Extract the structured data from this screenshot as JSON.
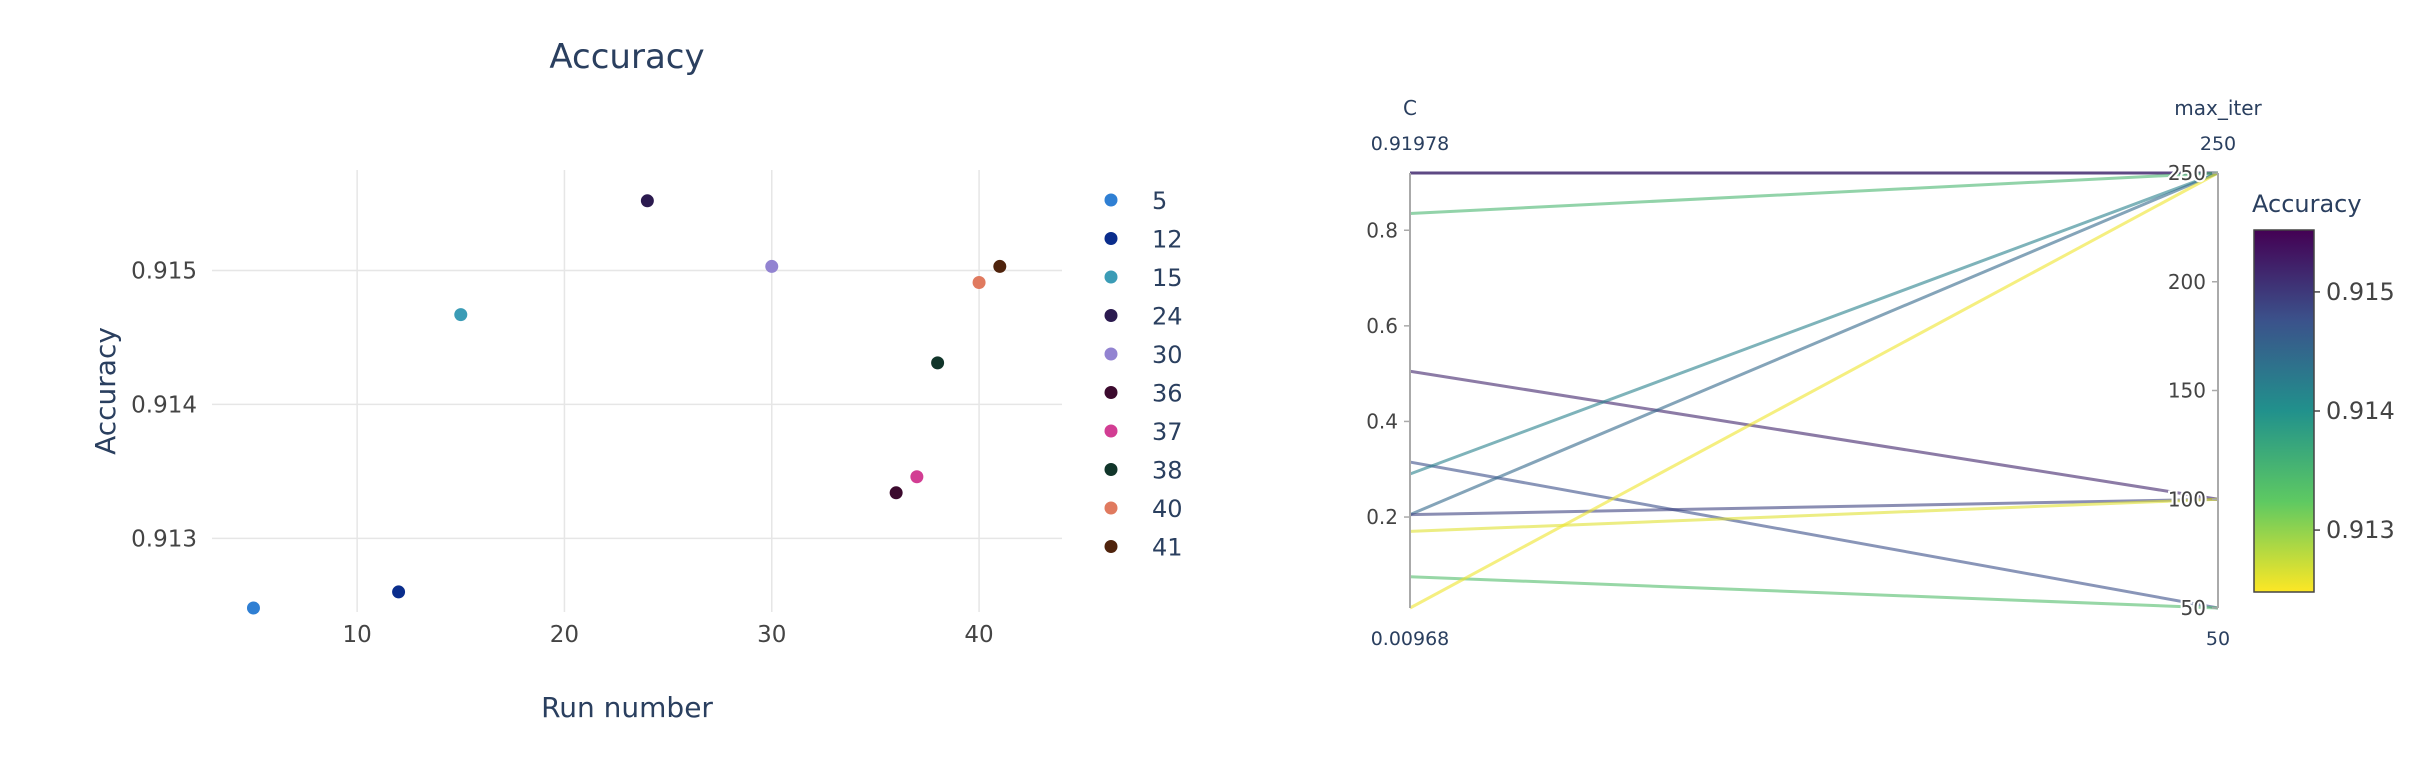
{
  "colors": {
    "grid": "#e6e6e6",
    "axis_text": "#444444",
    "title_text": "#2a3f5f",
    "pc_axis": "#aaaaaa",
    "viridis": [
      "#fde725",
      "#5ec962",
      "#21918c",
      "#3b528b",
      "#440154"
    ]
  },
  "chart_data": [
    {
      "type": "scatter",
      "title": "Accuracy",
      "xlabel": "Run number",
      "ylabel": "Accuracy",
      "xlim": [
        3,
        44
      ],
      "ylim": [
        0.91245,
        0.91575
      ],
      "xticks": [
        10,
        20,
        30,
        40
      ],
      "yticks": [
        0.913,
        0.914,
        0.915
      ],
      "grid": true,
      "legend_position": "right",
      "series": [
        {
          "name": "5",
          "x": [
            5
          ],
          "y": [
            0.91248
          ],
          "color": "#2f7fd3"
        },
        {
          "name": "12",
          "x": [
            12
          ],
          "y": [
            0.9126
          ],
          "color": "#0a2d8c"
        },
        {
          "name": "15",
          "x": [
            15
          ],
          "y": [
            0.91467
          ],
          "color": "#3b9cb6"
        },
        {
          "name": "24",
          "x": [
            24
          ],
          "y": [
            0.91552
          ],
          "color": "#2b1a4f"
        },
        {
          "name": "30",
          "x": [
            30
          ],
          "y": [
            0.91503
          ],
          "color": "#9283d1"
        },
        {
          "name": "36",
          "x": [
            36
          ],
          "y": [
            0.91334
          ],
          "color": "#3c0a2e"
        },
        {
          "name": "37",
          "x": [
            37
          ],
          "y": [
            0.91346
          ],
          "color": "#d23d93"
        },
        {
          "name": "38",
          "x": [
            38
          ],
          "y": [
            0.91431
          ],
          "color": "#11352a"
        },
        {
          "name": "40",
          "x": [
            40
          ],
          "y": [
            0.91491
          ],
          "color": "#e07a5f"
        },
        {
          "name": "41",
          "x": [
            41
          ],
          "y": [
            0.91503
          ],
          "color": "#4f230c"
        }
      ]
    },
    {
      "type": "parallel_coordinates",
      "dimensions": [
        {
          "label": "C",
          "range": [
            0.00968,
            0.91978
          ],
          "range_labels": [
            "0.00968",
            "0.91978"
          ],
          "ticks": [
            0.2,
            0.4,
            0.6,
            0.8
          ]
        },
        {
          "label": "max_iter",
          "range": [
            50,
            250
          ],
          "range_labels": [
            "50",
            "250"
          ],
          "ticks": [
            50,
            100,
            150,
            200,
            250
          ]
        }
      ],
      "colorbar": {
        "title": "Accuracy",
        "range": [
          0.91248,
          0.91552
        ],
        "ticks": [
          0.913,
          0.914,
          0.915
        ],
        "colorscale": "Viridis"
      },
      "lines": [
        {
          "C": 0.91978,
          "max_iter": 250,
          "accuracy": 0.91552
        },
        {
          "C": 0.91978,
          "max_iter": 250,
          "accuracy": 0.91503
        },
        {
          "C": 0.835,
          "max_iter": 250,
          "accuracy": 0.9135
        },
        {
          "C": 0.505,
          "max_iter": 100,
          "accuracy": 0.9152
        },
        {
          "C": 0.315,
          "max_iter": 50,
          "accuracy": 0.9148
        },
        {
          "C": 0.29,
          "max_iter": 250,
          "accuracy": 0.9142
        },
        {
          "C": 0.205,
          "max_iter": 250,
          "accuracy": 0.9145
        },
        {
          "C": 0.205,
          "max_iter": 100,
          "accuracy": 0.9149
        },
        {
          "C": 0.17,
          "max_iter": 100,
          "accuracy": 0.91262
        },
        {
          "C": 0.075,
          "max_iter": 50,
          "accuracy": 0.9134
        },
        {
          "C": 0.00968,
          "max_iter": 250,
          "accuracy": 0.91255
        }
      ]
    }
  ]
}
